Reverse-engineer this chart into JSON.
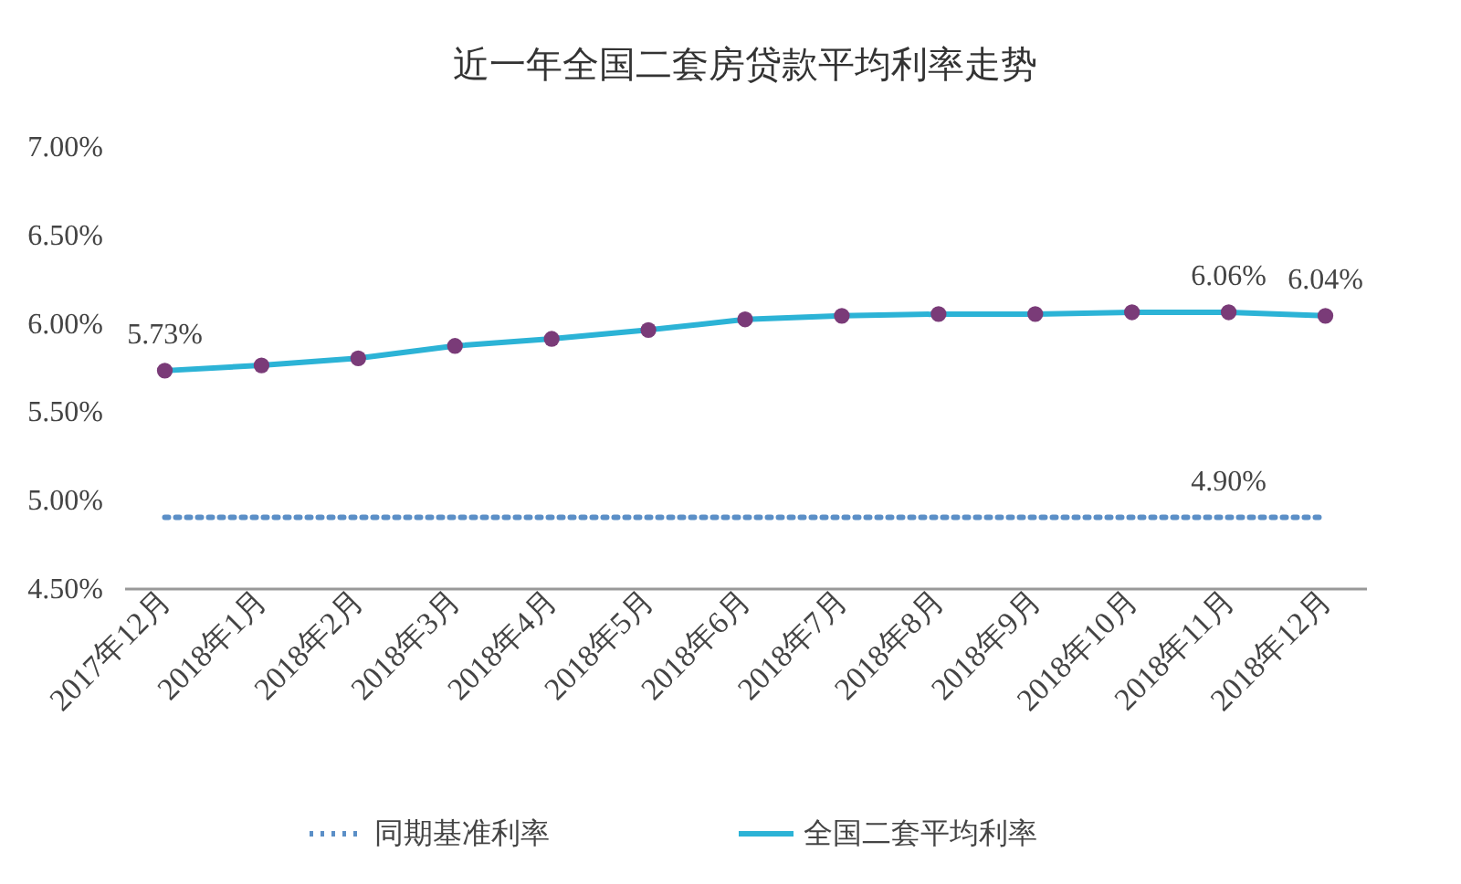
{
  "chart_data": {
    "type": "line",
    "title": "近一年全国二套房贷款平均利率走势",
    "categories": [
      "2017年12月",
      "2018年1月",
      "2018年2月",
      "2018年3月",
      "2018年4月",
      "2018年5月",
      "2018年6月",
      "2018年7月",
      "2018年8月",
      "2018年9月",
      "2018年10月",
      "2018年11月",
      "2018年12月"
    ],
    "ylim": [
      4.5,
      7.0
    ],
    "yticks": [
      {
        "value": 4.5,
        "label": "4.50%"
      },
      {
        "value": 5.0,
        "label": "5.00%"
      },
      {
        "value": 5.5,
        "label": "5.50%"
      },
      {
        "value": 6.0,
        "label": "6.00%"
      },
      {
        "value": 6.5,
        "label": "6.50%"
      },
      {
        "value": 7.0,
        "label": "7.00%"
      }
    ],
    "grid": false,
    "legend": "bottom",
    "series": [
      {
        "name": "同期基准利率",
        "color": "#5b8fc7",
        "line_style": "dotted",
        "marker": "none",
        "values": [
          4.9,
          4.9,
          4.9,
          4.9,
          4.9,
          4.9,
          4.9,
          4.9,
          4.9,
          4.9,
          4.9,
          4.9,
          4.9
        ],
        "value_labels": [
          null,
          null,
          null,
          null,
          null,
          null,
          null,
          null,
          null,
          null,
          null,
          "4.90%",
          null
        ]
      },
      {
        "name": "全国二套平均利率",
        "color": "#2cb3d6",
        "line_style": "solid",
        "marker": "circle",
        "colors": [
          "#7a3b78",
          "#7a3b78",
          "#7a3b78",
          "#7a3b78",
          "#7a3b78",
          "#7a3b78",
          "#7a3b78",
          "#7a3b78",
          "#7a3b78",
          "#7a3b78",
          "#7a3b78",
          "#7a3b78",
          "#7a3b78"
        ],
        "values": [
          5.73,
          5.76,
          5.8,
          5.87,
          5.91,
          5.96,
          6.02,
          6.04,
          6.05,
          6.05,
          6.06,
          6.06,
          6.04
        ],
        "value_labels": [
          "5.73%",
          null,
          null,
          null,
          null,
          null,
          null,
          null,
          null,
          null,
          null,
          "6.06%",
          "6.04%"
        ]
      }
    ]
  }
}
